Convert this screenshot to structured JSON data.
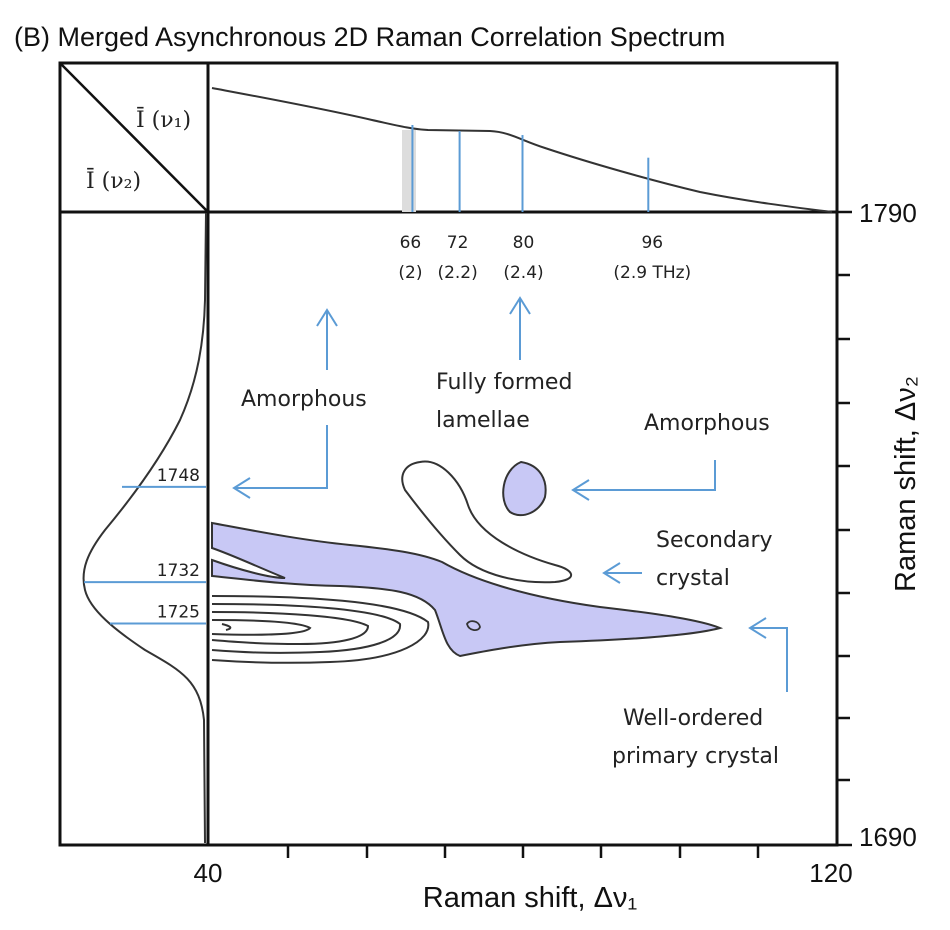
{
  "chart_data": {
    "type": "contour",
    "title": "(B)  Merged Asynchronous 2D Raman Correlation Spectrum",
    "xlabel": "Raman shift, Δν₁",
    "ylabel": "Raman shift, Δν₂",
    "xlim": [
      40,
      120
    ],
    "ylim": [
      1690,
      1790
    ],
    "x_tick_labels": [
      "40",
      "120"
    ],
    "y_tick_labels": [
      "1790",
      "1690"
    ],
    "corner_labels": {
      "top": "Ī (ν₁)",
      "bottom": "Ī (ν₂)"
    },
    "x_peak_marks": [
      {
        "x": 66,
        "label": "66",
        "sublabel": "(2)"
      },
      {
        "x": 72,
        "label": "72",
        "sublabel": "(2.2)"
      },
      {
        "x": 80,
        "label": "80",
        "sublabel": "(2.4)"
      },
      {
        "x": 96,
        "label": "96",
        "sublabel": "(2.9 THz)"
      }
    ],
    "y_peak_marks": [
      {
        "y": 1748,
        "label": "1748"
      },
      {
        "y": 1732,
        "label": "1732"
      },
      {
        "y": 1725,
        "label": "1725"
      }
    ],
    "annotations": [
      {
        "text": "Amorphous"
      },
      {
        "text": "Fully formed"
      },
      {
        "text": "lamellae"
      },
      {
        "text": "Amorphous"
      },
      {
        "text": "Secondary"
      },
      {
        "text": "crystal"
      },
      {
        "text": "Well-ordered"
      },
      {
        "text": "primary crystal"
      }
    ],
    "colors": {
      "fill": "#c8c8f5",
      "accent": "#5b9bd5",
      "line": "#111111"
    }
  }
}
